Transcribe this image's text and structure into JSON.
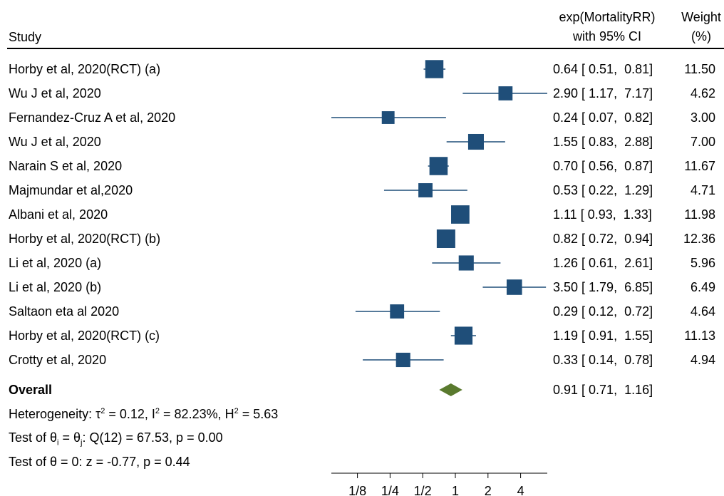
{
  "header": {
    "study_label": "Study",
    "effect_label_line1": "exp(MortalityRR)",
    "effect_label_line2": "with 95% CI",
    "weight_label_line1": "Weight",
    "weight_label_line2": "(%)"
  },
  "overall": {
    "label": "Overall",
    "ci_text": "0.91 [ 0.71,  1.16]",
    "heterogeneity_prefix": "Heterogeneity: ",
    "tau_symbol": "τ",
    "tau_value": " = 0.12, ",
    "i_symbol": "I",
    "i_value": " = 82.23%, ",
    "h_symbol": "H",
    "h_value": " = 5.63",
    "sup2": "2",
    "test_homog_a": "Test of θ",
    "sub_i": "i",
    "test_homog_b": " = θ",
    "sub_j": "j",
    "test_homog_c": ": Q(12) = 67.53, p = 0.00",
    "test_zero": "Test of θ = 0: z = -0.77, p = 0.44"
  },
  "axis": {
    "ticks": [
      {
        "label": "1/8",
        "value": 0.125
      },
      {
        "label": "1/4",
        "value": 0.25
      },
      {
        "label": "1/2",
        "value": 0.5
      },
      {
        "label": "1",
        "value": 1
      },
      {
        "label": "2",
        "value": 2
      },
      {
        "label": "4",
        "value": 4
      }
    ],
    "scale": "log"
  },
  "colors": {
    "study_marker": "#1f4e79",
    "overall_diamond": "#5a7a2e",
    "ci_line": "#1f4e79"
  },
  "chart_data": {
    "type": "forest",
    "scale": "log",
    "studies": [
      {
        "name": "Horby et al, 2020(RCT) (a)",
        "estimate": 0.64,
        "lower": 0.51,
        "upper": 0.81,
        "weight": 11.5,
        "ci_text": "0.64 [ 0.51,  0.81]",
        "weight_text": "11.50"
      },
      {
        "name": "Wu J et al, 2020",
        "estimate": 2.9,
        "lower": 1.17,
        "upper": 7.17,
        "weight": 4.62,
        "ci_text": "2.90 [ 1.17,  7.17]",
        "weight_text": "4.62"
      },
      {
        "name": "Fernandez-Cruz A et al, 2020",
        "estimate": 0.24,
        "lower": 0.07,
        "upper": 0.82,
        "weight": 3.0,
        "ci_text": "0.24 [ 0.07,  0.82]",
        "weight_text": "3.00"
      },
      {
        "name": "Wu J et al, 2020",
        "estimate": 1.55,
        "lower": 0.83,
        "upper": 2.88,
        "weight": 7.0,
        "ci_text": "1.55 [ 0.83,  2.88]",
        "weight_text": "7.00"
      },
      {
        "name": "Narain S et al, 2020",
        "estimate": 0.7,
        "lower": 0.56,
        "upper": 0.87,
        "weight": 11.67,
        "ci_text": "0.70 [ 0.56,  0.87]",
        "weight_text": "11.67"
      },
      {
        "name": "Majmundar et al,2020",
        "estimate": 0.53,
        "lower": 0.22,
        "upper": 1.29,
        "weight": 4.71,
        "ci_text": "0.53 [ 0.22,  1.29]",
        "weight_text": "4.71"
      },
      {
        "name": "Albani et al, 2020",
        "estimate": 1.11,
        "lower": 0.93,
        "upper": 1.33,
        "weight": 11.98,
        "ci_text": "1.11 [ 0.93,  1.33]",
        "weight_text": "11.98"
      },
      {
        "name": "Horby et al, 2020(RCT) (b)",
        "estimate": 0.82,
        "lower": 0.72,
        "upper": 0.94,
        "weight": 12.36,
        "ci_text": "0.82 [ 0.72,  0.94]",
        "weight_text": "12.36"
      },
      {
        "name": "Li et al, 2020 (a)",
        "estimate": 1.26,
        "lower": 0.61,
        "upper": 2.61,
        "weight": 5.96,
        "ci_text": "1.26 [ 0.61,  2.61]",
        "weight_text": "5.96"
      },
      {
        "name": "Li et al, 2020 (b)",
        "estimate": 3.5,
        "lower": 1.79,
        "upper": 6.85,
        "weight": 6.49,
        "ci_text": "3.50 [ 1.79,  6.85]",
        "weight_text": "6.49"
      },
      {
        "name": "Saltaon eta al 2020",
        "estimate": 0.29,
        "lower": 0.12,
        "upper": 0.72,
        "weight": 4.64,
        "ci_text": "0.29 [ 0.12,  0.72]",
        "weight_text": "4.64"
      },
      {
        "name": "Horby et al, 2020(RCT) (c)",
        "estimate": 1.19,
        "lower": 0.91,
        "upper": 1.55,
        "weight": 11.13,
        "ci_text": "1.19 [ 0.91,  1.55]",
        "weight_text": "11.13"
      },
      {
        "name": "Crotty et al, 2020",
        "estimate": 0.33,
        "lower": 0.14,
        "upper": 0.78,
        "weight": 4.94,
        "ci_text": "0.33 [ 0.14,  0.78]",
        "weight_text": "4.94"
      }
    ],
    "overall": {
      "estimate": 0.91,
      "lower": 0.71,
      "upper": 1.16
    },
    "x_ticks": [
      "1/8",
      "1/4",
      "1/2",
      "1",
      "2",
      "4"
    ]
  }
}
